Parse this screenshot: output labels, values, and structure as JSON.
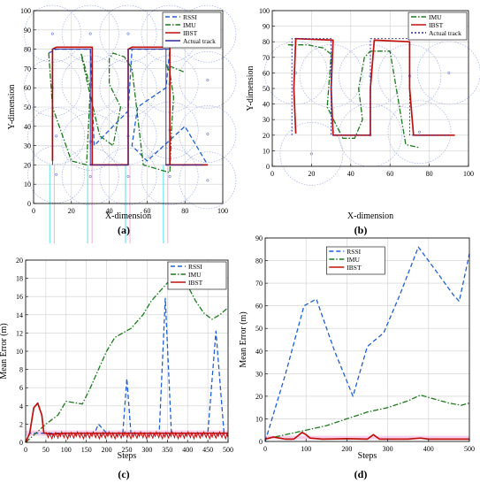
{
  "chart_data": [
    {
      "type": "line",
      "panel_label": "(a)",
      "xlabel": "X-dimension",
      "ylabel": "Y-dimension",
      "xlim": [
        0,
        100
      ],
      "ylim": [
        0,
        100
      ],
      "xticks": [
        0,
        20,
        40,
        60,
        80,
        100
      ],
      "yticks": [
        0,
        10,
        20,
        30,
        40,
        50,
        60,
        70,
        80,
        90,
        100
      ],
      "grid": true,
      "legend_position": "top-right",
      "colors": {
        "rssi": "#1f5fd6",
        "imu": "#1b7a1b",
        "ibst": "#c0100c",
        "actual": "#2a2a9a",
        "circles": "#6a7de0",
        "cyan": "#34e0e0",
        "pink": "#e87ac8"
      },
      "series": [
        {
          "name": "RSSI",
          "style": "dashed",
          "x": [
            8,
            12,
            30,
            32,
            50,
            52,
            72,
            70,
            55,
            52,
            60,
            80,
            92
          ],
          "y": [
            78,
            80,
            80,
            30,
            48,
            80,
            80,
            60,
            50,
            30,
            22,
            40,
            20
          ]
        },
        {
          "name": "IMU",
          "style": "dashdot",
          "x": [
            8,
            10,
            20,
            28,
            30,
            26,
            25,
            29,
            35,
            42,
            46,
            40,
            40,
            42,
            48,
            52,
            58,
            72,
            73,
            74,
            72,
            70,
            80
          ],
          "y": [
            78,
            50,
            22,
            20,
            60,
            75,
            78,
            60,
            35,
            30,
            50,
            62,
            75,
            78,
            76,
            70,
            20,
            16,
            40,
            55,
            68,
            72,
            68
          ]
        },
        {
          "name": "IBST",
          "style": "solid",
          "x": [
            10,
            10,
            12,
            31,
            31,
            30,
            50,
            50,
            52,
            72,
            72,
            70,
            92
          ],
          "y": [
            22,
            80,
            81,
            81,
            20,
            20,
            20,
            80,
            81,
            81,
            20,
            20,
            20
          ]
        },
        {
          "name": "Actual track",
          "style": "solid",
          "x": [
            10,
            10,
            30,
            30,
            50,
            50,
            70,
            70,
            90
          ],
          "y": [
            20,
            80,
            80,
            20,
            20,
            80,
            80,
            20,
            20
          ]
        }
      ]
    },
    {
      "type": "line",
      "panel_label": "(b)",
      "xlabel": "X-dimension",
      "ylabel": "Y-dimension",
      "xlim": [
        0,
        100
      ],
      "ylim": [
        0,
        100
      ],
      "xticks": [
        0,
        20,
        40,
        60,
        80,
        100
      ],
      "yticks": [
        0,
        10,
        20,
        30,
        40,
        50,
        60,
        70,
        80,
        90,
        100
      ],
      "grid": true,
      "legend_position": "top-right",
      "colors": {
        "imu": "#1b7a1b",
        "ibst": "#c0100c",
        "actual": "#2a2a9a",
        "circles": "#6a7de0"
      },
      "series": [
        {
          "name": "IMU",
          "style": "dashdot",
          "x": [
            8,
            10,
            18,
            26,
            30,
            28,
            36,
            42,
            46,
            44,
            47,
            50,
            56,
            60,
            68,
            75
          ],
          "y": [
            78,
            78,
            78,
            76,
            72,
            38,
            18,
            18,
            30,
            50,
            70,
            74,
            74,
            74,
            14,
            12
          ]
        },
        {
          "name": "IBST",
          "style": "solid",
          "x": [
            12,
            11,
            12,
            31,
            30,
            31,
            50,
            50,
            52,
            70,
            70,
            72,
            93
          ],
          "y": [
            21,
            50,
            82,
            81,
            50,
            20,
            20,
            50,
            81,
            80,
            50,
            20,
            20
          ]
        },
        {
          "name": "Actual track",
          "style": "dotted",
          "x": [
            10,
            10,
            30,
            30,
            50,
            50,
            70,
            70,
            90
          ],
          "y": [
            20,
            82,
            82,
            20,
            20,
            82,
            82,
            20,
            20
          ]
        }
      ]
    },
    {
      "type": "line",
      "panel_label": "(c)",
      "xlabel": "Steps",
      "ylabel": "Mean Error (m)",
      "xlim": [
        0,
        500
      ],
      "ylim": [
        0,
        20
      ],
      "xticks": [
        0,
        50,
        100,
        150,
        200,
        250,
        300,
        350,
        400,
        450,
        500
      ],
      "yticks": [
        0,
        2,
        4,
        6,
        8,
        10,
        12,
        14,
        16,
        18,
        20
      ],
      "grid": true,
      "legend_position": "top-right",
      "colors": {
        "rssi": "#1f5fd6",
        "imu": "#1b7a1b",
        "ibst": "#c0100c",
        "pink": "#e87ac8"
      },
      "series": [
        {
          "name": "RSSI",
          "style": "dashed",
          "x": [
            0,
            10,
            40,
            170,
            180,
            200,
            240,
            250,
            260,
            330,
            345,
            360,
            450,
            470,
            490,
            500
          ],
          "y": [
            0,
            1,
            1,
            1,
            2,
            1,
            1,
            7,
            1,
            1,
            15.8,
            1,
            1,
            12.2,
            1,
            1
          ]
        },
        {
          "name": "IMU",
          "style": "dashdot",
          "x": [
            0,
            20,
            50,
            80,
            100,
            140,
            160,
            180,
            200,
            220,
            240,
            260,
            290,
            310,
            330,
            350,
            370,
            380,
            400,
            420,
            440,
            460,
            480,
            500
          ],
          "y": [
            0,
            0.8,
            2,
            3,
            4.5,
            4.2,
            6,
            8,
            10,
            11.5,
            12,
            12.5,
            14,
            15.5,
            16.5,
            17.5,
            18,
            18,
            17.2,
            15.5,
            14.2,
            13.5,
            14,
            14.8
          ]
        },
        {
          "name": "IBST",
          "style": "solid",
          "x": [
            0,
            10,
            20,
            30,
            40,
            45,
            50,
            60,
            100,
            200,
            300,
            400,
            500
          ],
          "y": [
            0,
            1,
            3.8,
            4.3,
            3,
            1,
            1,
            0.9,
            1,
            1,
            1,
            1,
            1
          ]
        }
      ]
    },
    {
      "type": "line",
      "panel_label": "(d)",
      "xlabel": "Steps",
      "ylabel": "Mean Error (m)",
      "xlim": [
        0,
        500
      ],
      "ylim": [
        0,
        90
      ],
      "xticks": [
        0,
        100,
        200,
        300,
        400,
        500
      ],
      "yticks": [
        0,
        10,
        20,
        30,
        40,
        50,
        60,
        70,
        80,
        90
      ],
      "grid": true,
      "legend_position": "top-left",
      "colors": {
        "rssi": "#1f5fd6",
        "imu": "#1b7a1b",
        "ibst": "#c0100c",
        "pink": "#e87ac8"
      },
      "series": [
        {
          "name": "RSSI",
          "style": "dashed",
          "x": [
            0,
            50,
            95,
            125,
            170,
            215,
            250,
            290,
            330,
            375,
            420,
            460,
            475,
            500
          ],
          "y": [
            0,
            30,
            60,
            63,
            40,
            20,
            42,
            48,
            65,
            86,
            75,
            65,
            62,
            83
          ]
        },
        {
          "name": "IMU",
          "style": "dashdot",
          "x": [
            0,
            50,
            100,
            150,
            200,
            250,
            300,
            350,
            380,
            400,
            450,
            480,
            500
          ],
          "y": [
            1,
            3,
            5,
            7,
            10,
            13,
            15,
            18,
            20.5,
            19.5,
            17,
            16,
            17
          ]
        },
        {
          "name": "IBST",
          "style": "solid",
          "x": [
            0,
            20,
            50,
            70,
            80,
            90,
            100,
            110,
            140,
            200,
            250,
            265,
            280,
            300,
            350,
            380,
            400,
            450,
            500
          ],
          "y": [
            1,
            2,
            1,
            1,
            2.5,
            4,
            3,
            1.5,
            1,
            1.2,
            1,
            3,
            1,
            1,
            1,
            1.5,
            1,
            1,
            1
          ]
        }
      ]
    }
  ]
}
